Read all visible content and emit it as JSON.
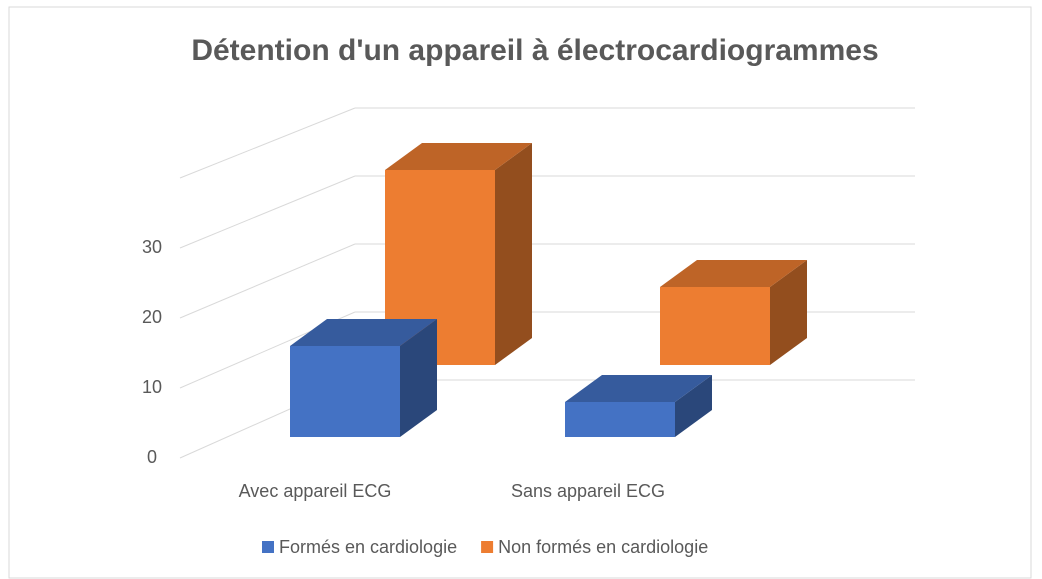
{
  "chart_data": {
    "type": "bar3d",
    "title": "Détention d'un appareil à électrocardiogrammes",
    "categories": [
      "Avec appareil ECG",
      "Sans appareil ECG"
    ],
    "series": [
      {
        "name": "Formés en cardiologie",
        "color": "#4472c4",
        "values": [
          13,
          5
        ]
      },
      {
        "name": "Non formés en cardiologie",
        "color": "#ed7d31",
        "values": [
          30,
          12
        ]
      }
    ],
    "ylim": [
      0,
      40
    ],
    "yticks": [
      0,
      10,
      20,
      30
    ],
    "grid": true,
    "legend": "bottom"
  }
}
